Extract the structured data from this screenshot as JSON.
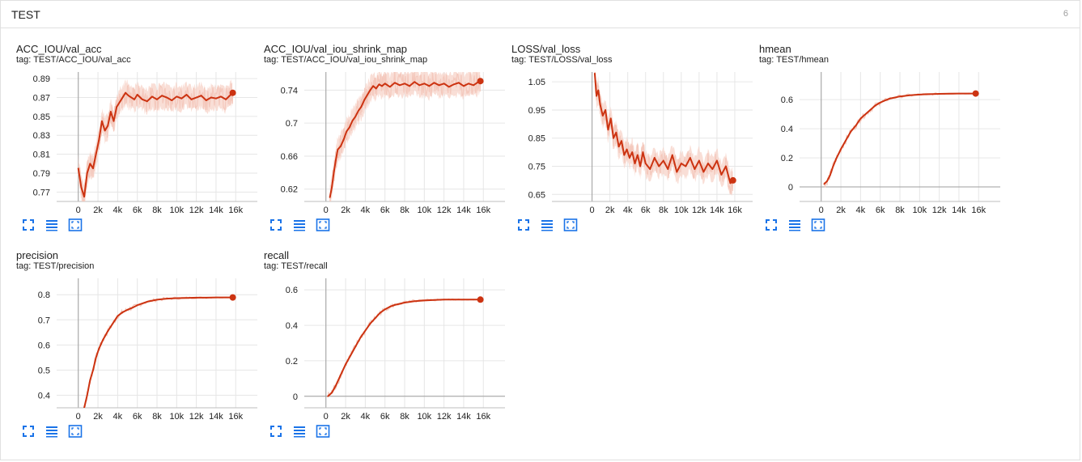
{
  "section": {
    "title": "TEST",
    "count": "6"
  },
  "colors": {
    "smoothed": "#cc3311",
    "raw": "#f4c8bc",
    "band": "#f7d3c8",
    "grid": "#e6e6e6",
    "axis": "#9e9e9e",
    "icon": "#1a73e8"
  },
  "icons": [
    "fullscreen-icon",
    "list-icon",
    "fit-domain-icon"
  ],
  "chart_data": [
    {
      "type": "line",
      "title": "ACC_IOU/val_acc",
      "tag": "tag: TEST/ACC_IOU/val_acc",
      "xlim": [
        -2200,
        18200
      ],
      "ylim": [
        0.76,
        0.897
      ],
      "xticks": [
        0,
        2000,
        4000,
        6000,
        8000,
        10000,
        12000,
        14000,
        16000
      ],
      "xtick_labels": [
        "0",
        "2k",
        "4k",
        "6k",
        "8k",
        "10k",
        "12k",
        "14k",
        "16k"
      ],
      "yticks": [
        0.77,
        0.79,
        0.81,
        0.83,
        0.85,
        0.87,
        0.89
      ],
      "ytick_labels": [
        "0.77",
        "0.79",
        "0.81",
        "0.83",
        "0.85",
        "0.87",
        "0.89"
      ],
      "raw_band": true,
      "series": [
        {
          "x": [
            0,
            300,
            600,
            900,
            1200,
            1500,
            1800,
            2100,
            2400,
            2700,
            3000,
            3300,
            3600,
            3900,
            4200,
            4500,
            4800,
            5100,
            5400,
            5700,
            6000,
            6500,
            7000,
            7500,
            8000,
            8500,
            9000,
            9500,
            10000,
            10500,
            11000,
            11500,
            12000,
            12500,
            13000,
            13500,
            14000,
            14500,
            15000,
            15500,
            15700
          ],
          "values": [
            0.795,
            0.775,
            0.765,
            0.79,
            0.8,
            0.795,
            0.81,
            0.825,
            0.845,
            0.835,
            0.84,
            0.855,
            0.845,
            0.86,
            0.865,
            0.87,
            0.875,
            0.872,
            0.87,
            0.868,
            0.873,
            0.868,
            0.866,
            0.871,
            0.868,
            0.872,
            0.87,
            0.867,
            0.871,
            0.869,
            0.873,
            0.868,
            0.87,
            0.872,
            0.867,
            0.87,
            0.869,
            0.871,
            0.868,
            0.873,
            0.875
          ]
        }
      ]
    },
    {
      "type": "line",
      "title": "ACC_IOU/val_iou_shrink_map",
      "tag": "tag: TEST/ACC_IOU/val_iou_shrink_map",
      "xlim": [
        -2200,
        18200
      ],
      "ylim": [
        0.605,
        0.762
      ],
      "xticks": [
        0,
        2000,
        4000,
        6000,
        8000,
        10000,
        12000,
        14000,
        16000
      ],
      "xtick_labels": [
        "0",
        "2k",
        "4k",
        "6k",
        "8k",
        "10k",
        "12k",
        "14k",
        "16k"
      ],
      "yticks": [
        0.62,
        0.66,
        0.7,
        0.74
      ],
      "ytick_labels": [
        "0.62",
        "0.66",
        "0.7",
        "0.74"
      ],
      "raw_band": true,
      "series": [
        {
          "x": [
            400,
            600,
            800,
            1000,
            1200,
            1500,
            1800,
            2100,
            2400,
            2700,
            3000,
            3300,
            3600,
            3900,
            4200,
            4500,
            4800,
            5100,
            5400,
            5700,
            6000,
            6500,
            7000,
            7500,
            8000,
            8500,
            9000,
            9500,
            10000,
            10500,
            11000,
            11500,
            12000,
            12500,
            13000,
            13500,
            14000,
            14500,
            15000,
            15500,
            15700
          ],
          "values": [
            0.61,
            0.622,
            0.64,
            0.655,
            0.668,
            0.672,
            0.68,
            0.69,
            0.695,
            0.703,
            0.708,
            0.715,
            0.72,
            0.728,
            0.734,
            0.74,
            0.745,
            0.742,
            0.747,
            0.745,
            0.748,
            0.744,
            0.749,
            0.746,
            0.748,
            0.745,
            0.75,
            0.746,
            0.748,
            0.745,
            0.749,
            0.746,
            0.748,
            0.744,
            0.747,
            0.749,
            0.745,
            0.748,
            0.746,
            0.75,
            0.751
          ]
        }
      ]
    },
    {
      "type": "line",
      "title": "LOSS/val_loss",
      "tag": "tag: TEST/LOSS/val_loss",
      "xlim": [
        -4500,
        18000
      ],
      "ylim": [
        0.625,
        1.085
      ],
      "xticks": [
        0,
        2000,
        4000,
        6000,
        8000,
        10000,
        12000,
        14000,
        16000
      ],
      "xtick_labels": [
        "0",
        "2k",
        "4k",
        "6k",
        "8k",
        "10k",
        "12k",
        "14k",
        "16k"
      ],
      "yticks": [
        0.65,
        0.75,
        0.85,
        0.95,
        1.05
      ],
      "ytick_labels": [
        "0.65",
        "0.75",
        "0.85",
        "0.95",
        "1.05"
      ],
      "raw_band": true,
      "series": [
        {
          "x": [
            300,
            500,
            700,
            900,
            1200,
            1500,
            1800,
            2100,
            2400,
            2700,
            3000,
            3300,
            3600,
            3900,
            4200,
            4500,
            4800,
            5100,
            5400,
            5700,
            6000,
            6500,
            7000,
            7500,
            8000,
            8500,
            9000,
            9500,
            10000,
            10500,
            11000,
            11500,
            12000,
            12500,
            13000,
            13500,
            14000,
            14500,
            15000,
            15500,
            15800
          ],
          "values": [
            1.08,
            1.0,
            1.02,
            0.97,
            0.93,
            0.95,
            0.88,
            0.92,
            0.85,
            0.87,
            0.82,
            0.84,
            0.79,
            0.81,
            0.78,
            0.8,
            0.76,
            0.79,
            0.75,
            0.8,
            0.76,
            0.74,
            0.78,
            0.75,
            0.77,
            0.74,
            0.79,
            0.73,
            0.76,
            0.75,
            0.78,
            0.74,
            0.77,
            0.73,
            0.76,
            0.74,
            0.77,
            0.72,
            0.75,
            0.69,
            0.7
          ]
        }
      ]
    },
    {
      "type": "line",
      "title": "hmean",
      "tag": "tag: TEST/hmean",
      "xlim": [
        -2200,
        18200
      ],
      "ylim": [
        -0.1,
        0.79
      ],
      "xticks": [
        0,
        2000,
        4000,
        6000,
        8000,
        10000,
        12000,
        14000,
        16000
      ],
      "xtick_labels": [
        "0",
        "2k",
        "4k",
        "6k",
        "8k",
        "10k",
        "12k",
        "14k",
        "16k"
      ],
      "yticks": [
        0,
        0.2,
        0.4,
        0.6
      ],
      "ytick_labels": [
        "0",
        "0.2",
        "0.4",
        "0.6"
      ],
      "raw_band": false,
      "series": [
        {
          "x": [
            300,
            600,
            900,
            1200,
            1500,
            2000,
            2500,
            3000,
            3500,
            4000,
            4500,
            5000,
            5500,
            6000,
            6500,
            7000,
            8000,
            9000,
            10000,
            11000,
            12000,
            13000,
            14000,
            15000,
            15700
          ],
          "values": [
            0.02,
            0.04,
            0.08,
            0.14,
            0.19,
            0.26,
            0.32,
            0.38,
            0.42,
            0.47,
            0.5,
            0.53,
            0.56,
            0.58,
            0.595,
            0.608,
            0.622,
            0.63,
            0.635,
            0.638,
            0.64,
            0.641,
            0.642,
            0.642,
            0.642
          ]
        }
      ]
    },
    {
      "type": "line",
      "title": "precision",
      "tag": "tag: TEST/precision",
      "xlim": [
        -2200,
        18200
      ],
      "ylim": [
        0.35,
        0.865
      ],
      "xticks": [
        0,
        2000,
        4000,
        6000,
        8000,
        10000,
        12000,
        14000,
        16000
      ],
      "xtick_labels": [
        "0",
        "2k",
        "4k",
        "6k",
        "8k",
        "10k",
        "12k",
        "14k",
        "16k"
      ],
      "yticks": [
        0.4,
        0.5,
        0.6,
        0.7,
        0.8
      ],
      "ytick_labels": [
        "0.4",
        "0.5",
        "0.6",
        "0.7",
        "0.8"
      ],
      "raw_band": false,
      "series": [
        {
          "x": [
            600,
            900,
            1200,
            1500,
            1800,
            2100,
            2500,
            3000,
            3500,
            4000,
            4500,
            5000,
            5500,
            6000,
            7000,
            8000,
            9000,
            10000,
            11000,
            12000,
            13000,
            14000,
            15000,
            15700
          ],
          "values": [
            0.35,
            0.4,
            0.46,
            0.5,
            0.55,
            0.585,
            0.62,
            0.655,
            0.685,
            0.715,
            0.73,
            0.74,
            0.748,
            0.758,
            0.772,
            0.78,
            0.784,
            0.786,
            0.787,
            0.788,
            0.788,
            0.789,
            0.789,
            0.789
          ]
        }
      ]
    },
    {
      "type": "line",
      "title": "recall",
      "tag": "tag: TEST/recall",
      "xlim": [
        -2200,
        18200
      ],
      "ylim": [
        -0.065,
        0.665
      ],
      "xticks": [
        0,
        2000,
        4000,
        6000,
        8000,
        10000,
        12000,
        14000,
        16000
      ],
      "xtick_labels": [
        "0",
        "2k",
        "4k",
        "6k",
        "8k",
        "10k",
        "12k",
        "14k",
        "16k"
      ],
      "yticks": [
        0,
        0.2,
        0.4,
        0.6
      ],
      "ytick_labels": [
        "0",
        "0.2",
        "0.4",
        "0.6"
      ],
      "raw_band": false,
      "series": [
        {
          "x": [
            200,
            600,
            1000,
            1500,
            2000,
            2500,
            3000,
            3500,
            4000,
            4500,
            5000,
            5500,
            6000,
            6500,
            7000,
            8000,
            9000,
            10000,
            11000,
            12000,
            13000,
            14000,
            15000,
            15700
          ],
          "values": [
            0.0,
            0.02,
            0.06,
            0.12,
            0.18,
            0.23,
            0.28,
            0.33,
            0.37,
            0.41,
            0.44,
            0.47,
            0.49,
            0.505,
            0.515,
            0.528,
            0.536,
            0.54,
            0.543,
            0.545,
            0.545,
            0.545,
            0.545,
            0.545
          ]
        }
      ]
    }
  ]
}
